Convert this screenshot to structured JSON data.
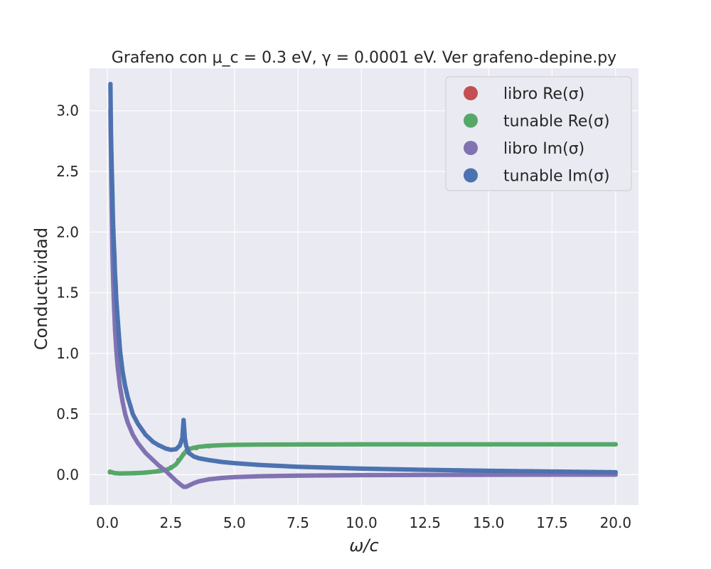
{
  "chart_data": {
    "type": "scatter",
    "title": "Grafeno con μ_c = 0.3 eV, γ = 0.0001 eV. Ver grafeno-depine.py",
    "xlabel": "ω/c",
    "ylabel": "Conductividad",
    "xlim": [
      -0.7,
      20.9
    ],
    "ylim": [
      -0.25,
      3.35
    ],
    "x_ticks": [
      0.0,
      2.5,
      5.0,
      7.5,
      10.0,
      12.5,
      15.0,
      17.5,
      20.0
    ],
    "x_tick_labels": [
      "0.0",
      "2.5",
      "5.0",
      "7.5",
      "10.0",
      "12.5",
      "15.0",
      "17.5",
      "20.0"
    ],
    "y_ticks": [
      0.0,
      0.5,
      1.0,
      1.5,
      2.0,
      2.5,
      3.0
    ],
    "y_tick_labels": [
      "0.0",
      "0.5",
      "1.0",
      "1.5",
      "2.0",
      "2.5",
      "3.0"
    ],
    "grid": true,
    "legend_position": "top-right",
    "series": [
      {
        "name": "libro Re(σ)",
        "color": "#c44e52",
        "x": [
          0.1,
          0.5,
          1.0,
          1.5,
          2.0,
          2.5,
          2.8,
          3.0,
          3.2,
          3.5,
          4.0,
          5.0,
          7.5,
          10.0,
          12.5,
          15.0,
          17.5,
          20.0
        ],
        "y": [
          0.02,
          0.01,
          0.012,
          0.018,
          0.03,
          0.06,
          0.12,
          0.17,
          0.2,
          0.22,
          0.235,
          0.245,
          0.25,
          0.25,
          0.25,
          0.25,
          0.25,
          0.25
        ]
      },
      {
        "name": "tunable Re(σ)",
        "color": "#55a868",
        "x": [
          0.1,
          0.2,
          0.3,
          0.5,
          1.0,
          1.5,
          2.0,
          2.3,
          2.5,
          2.7,
          2.85,
          3.0,
          3.1,
          3.2,
          3.4,
          3.6,
          4.0,
          4.5,
          5.0,
          6.0,
          7.5,
          10.0,
          12.5,
          15.0,
          17.5,
          20.0
        ],
        "y": [
          0.025,
          0.018,
          0.013,
          0.01,
          0.012,
          0.017,
          0.028,
          0.04,
          0.055,
          0.085,
          0.125,
          0.17,
          0.195,
          0.21,
          0.222,
          0.23,
          0.238,
          0.243,
          0.246,
          0.248,
          0.249,
          0.25,
          0.25,
          0.25,
          0.25,
          0.25
        ]
      },
      {
        "name": "libro Im(σ)",
        "color": "#8172b2",
        "x": [
          0.12,
          0.16,
          0.2,
          0.25,
          0.3,
          0.35,
          0.4,
          0.5,
          0.6,
          0.7,
          0.8,
          1.0,
          1.2,
          1.5,
          1.8,
          2.0,
          2.3,
          2.5,
          2.7,
          2.9,
          3.0,
          3.1,
          3.2,
          3.4,
          3.6,
          4.0,
          4.5,
          5.0,
          6.0,
          7.5,
          10.0,
          12.5,
          15.0,
          17.5,
          20.0
        ],
        "y": [
          3.0,
          2.3,
          1.8,
          1.45,
          1.2,
          1.03,
          0.9,
          0.72,
          0.6,
          0.5,
          0.43,
          0.33,
          0.26,
          0.18,
          0.12,
          0.08,
          0.03,
          -0.01,
          -0.05,
          -0.085,
          -0.1,
          -0.1,
          -0.09,
          -0.07,
          -0.055,
          -0.038,
          -0.027,
          -0.02,
          -0.013,
          -0.008,
          -0.004,
          -0.002,
          -0.001,
          0.0,
          0.0
        ]
      },
      {
        "name": "tunable Im(σ)",
        "color": "#4c72b0",
        "x": [
          0.12,
          0.14,
          0.17,
          0.2,
          0.22,
          0.25,
          0.28,
          0.3,
          0.33,
          0.35,
          0.4,
          0.5,
          0.6,
          0.7,
          0.8,
          1.0,
          1.2,
          1.5,
          1.8,
          2.0,
          2.3,
          2.5,
          2.7,
          2.85,
          2.95,
          3.0,
          3.05,
          3.1,
          3.2,
          3.4,
          3.6,
          4.0,
          4.5,
          5.0,
          6.0,
          7.5,
          10.0,
          12.5,
          15.0,
          17.5,
          20.0
        ],
        "y": [
          3.22,
          2.84,
          2.54,
          2.3,
          2.1,
          1.93,
          1.79,
          1.66,
          1.55,
          1.45,
          1.3,
          1.02,
          0.85,
          0.73,
          0.64,
          0.5,
          0.42,
          0.33,
          0.27,
          0.245,
          0.215,
          0.205,
          0.21,
          0.24,
          0.3,
          0.45,
          0.3,
          0.24,
          0.18,
          0.15,
          0.135,
          0.12,
          0.105,
          0.095,
          0.08,
          0.065,
          0.05,
          0.04,
          0.032,
          0.026,
          0.02
        ]
      }
    ]
  }
}
